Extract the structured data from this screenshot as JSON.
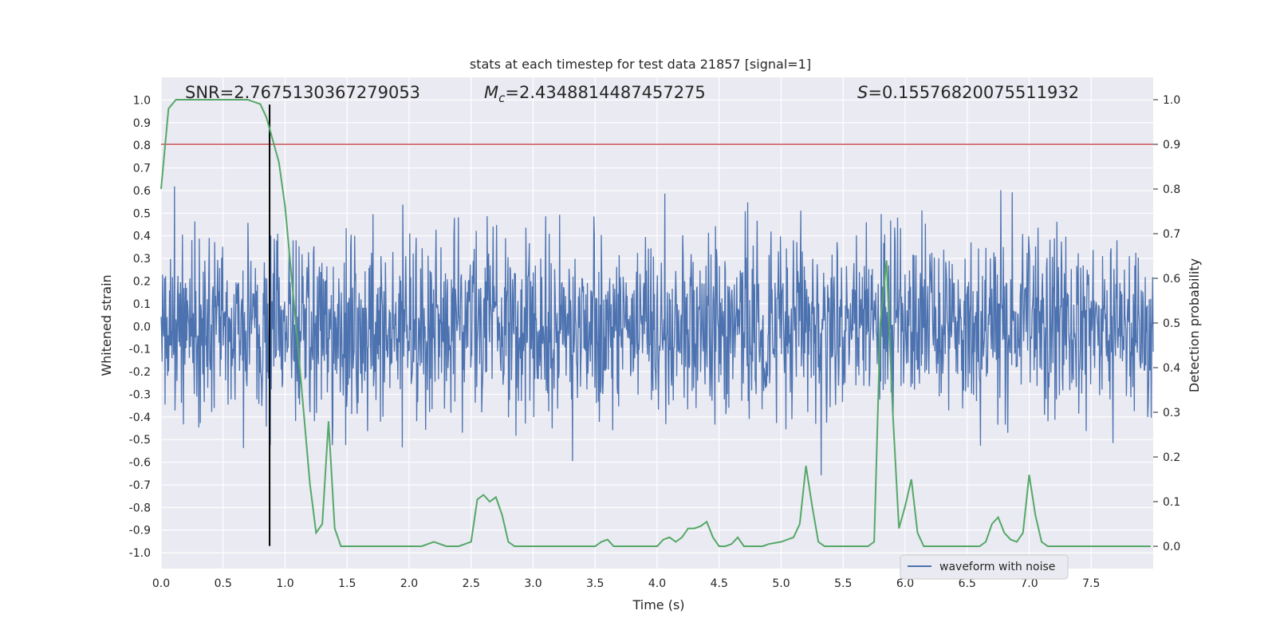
{
  "chart_data": {
    "type": "line",
    "title": "stats at each timestep for test data 21857 [signal=1]",
    "xlabel": "Time (s)",
    "ylabel_left": "Whitened strain",
    "ylabel_right": "Detection probability",
    "xlim": [
      0,
      8.0
    ],
    "ylim_left": [
      -1.07,
      1.1
    ],
    "ylim_right": [
      -0.05,
      1.05
    ],
    "x_ticks": [
      "0.0",
      "0.5",
      "1.0",
      "1.5",
      "2.0",
      "2.5",
      "3.0",
      "3.5",
      "4.0",
      "4.5",
      "5.0",
      "5.5",
      "6.0",
      "6.5",
      "7.0",
      "7.5"
    ],
    "x_tick_values": [
      0,
      0.5,
      1,
      1.5,
      2,
      2.5,
      3,
      3.5,
      4,
      4.5,
      5,
      5.5,
      6,
      6.5,
      7,
      7.5
    ],
    "y_left_ticks": [
      "1.0",
      "0.9",
      "0.8",
      "0.7",
      "0.6",
      "0.5",
      "0.4",
      "0.3",
      "0.2",
      "0.1",
      "0.0",
      "-0.1",
      "-0.2",
      "-0.3",
      "-0.4",
      "-0.5",
      "-0.6",
      "-0.7",
      "-0.8",
      "-0.9",
      "-1.0"
    ],
    "y_left_tick_values": [
      1.0,
      0.9,
      0.8,
      0.7,
      0.6,
      0.5,
      0.4,
      0.3,
      0.2,
      0.1,
      0.0,
      -0.1,
      -0.2,
      -0.3,
      -0.4,
      -0.5,
      -0.6,
      -0.7,
      -0.8,
      -0.9,
      -1.0
    ],
    "y_right_ticks": [
      "1.0",
      "0.9",
      "0.8",
      "0.7",
      "0.6",
      "0.5",
      "0.4",
      "0.3",
      "0.2",
      "0.1",
      "0.0"
    ],
    "y_right_tick_values": [
      1.0,
      0.9,
      0.8,
      0.7,
      0.6,
      0.5,
      0.4,
      0.3,
      0.2,
      0.1,
      0.0
    ],
    "grid": true,
    "legend": {
      "entries": [
        "waveform with noise"
      ],
      "placement": "lower-right"
    },
    "annotations": {
      "snr": "SNR=2.7675130367279053",
      "mc_symbol": "M",
      "mc_sub": "c",
      "mc_value": "=2.4348814487457275",
      "s_symbol": "S",
      "s_value": "=0.15576820075511932"
    },
    "threshold": {
      "value": 0.9,
      "axis": "right",
      "color": "#c44e52"
    },
    "event_marker": {
      "x": 0.875,
      "color": "#000000"
    },
    "series": [
      {
        "name": "waveform with noise",
        "color": "#4c72b0",
        "axis": "left",
        "kind": "noise",
        "n_samples": 2000,
        "seed": 21857,
        "sigma": 0.2,
        "clip": 1.0,
        "x_range": [
          0,
          8.0
        ]
      },
      {
        "color": "#55a868",
        "axis": "right",
        "x": [
          0.0,
          0.06,
          0.12,
          0.2,
          0.3,
          0.4,
          0.5,
          0.6,
          0.7,
          0.8,
          0.85,
          0.9,
          0.95,
          1.0,
          1.05,
          1.1,
          1.15,
          1.2,
          1.25,
          1.3,
          1.35,
          1.4,
          1.45,
          1.5,
          1.6,
          1.7,
          1.8,
          1.9,
          2.0,
          2.1,
          2.2,
          2.3,
          2.4,
          2.5,
          2.55,
          2.6,
          2.65,
          2.7,
          2.75,
          2.8,
          2.85,
          2.9,
          3.0,
          3.1,
          3.2,
          3.3,
          3.4,
          3.5,
          3.55,
          3.6,
          3.65,
          3.7,
          3.8,
          3.9,
          4.0,
          4.05,
          4.1,
          4.15,
          4.2,
          4.25,
          4.3,
          4.35,
          4.4,
          4.45,
          4.5,
          4.55,
          4.6,
          4.65,
          4.7,
          4.75,
          4.8,
          4.85,
          4.9,
          5.0,
          5.1,
          5.15,
          5.2,
          5.25,
          5.3,
          5.35,
          5.4,
          5.45,
          5.5,
          5.6,
          5.7,
          5.75,
          5.8,
          5.85,
          5.9,
          5.95,
          6.0,
          6.05,
          6.1,
          6.15,
          6.2,
          6.25,
          6.3,
          6.4,
          6.5,
          6.6,
          6.65,
          6.7,
          6.75,
          6.8,
          6.85,
          6.9,
          6.95,
          7.0,
          7.05,
          7.1,
          7.15,
          7.2,
          7.25,
          7.3,
          7.4,
          7.5,
          7.6,
          7.7,
          7.8,
          7.9,
          7.98
        ],
        "y": [
          0.8,
          0.98,
          1.0,
          1.0,
          1.0,
          1.0,
          1.0,
          1.0,
          1.0,
          0.99,
          0.96,
          0.91,
          0.86,
          0.76,
          0.61,
          0.46,
          0.3,
          0.14,
          0.03,
          0.05,
          0.28,
          0.04,
          0.0,
          0.0,
          0.0,
          0.0,
          0.0,
          0.0,
          0.0,
          0.0,
          0.01,
          0.0,
          0.0,
          0.01,
          0.105,
          0.115,
          0.1,
          0.11,
          0.07,
          0.01,
          0.0,
          0.0,
          0.0,
          0.0,
          0.0,
          0.0,
          0.0,
          0.0,
          0.01,
          0.015,
          0.0,
          0.0,
          0.0,
          0.0,
          0.0,
          0.015,
          0.02,
          0.01,
          0.02,
          0.04,
          0.04,
          0.045,
          0.055,
          0.02,
          0.0,
          0.0,
          0.005,
          0.02,
          0.0,
          0.0,
          0.0,
          0.0,
          0.005,
          0.01,
          0.02,
          0.05,
          0.18,
          0.09,
          0.01,
          0.0,
          0.0,
          0.0,
          0.0,
          0.0,
          0.0,
          0.01,
          0.5,
          0.64,
          0.3,
          0.04,
          0.09,
          0.15,
          0.03,
          0.0,
          0.0,
          0.0,
          0.0,
          0.0,
          0.0,
          0.0,
          0.01,
          0.05,
          0.065,
          0.03,
          0.015,
          0.01,
          0.03,
          0.16,
          0.07,
          0.01,
          0.0,
          0.0,
          0.0,
          0.0,
          0.0,
          0.0,
          0.0,
          0.0,
          0.0,
          0.0,
          0.0
        ]
      }
    ]
  }
}
